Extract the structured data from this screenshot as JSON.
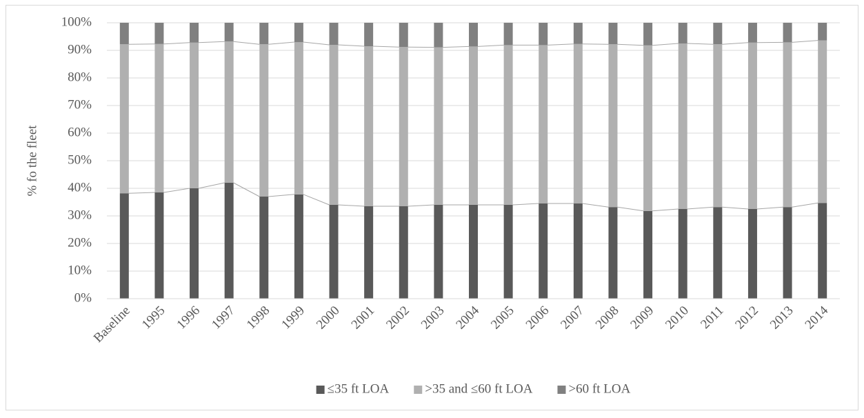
{
  "chart_data": {
    "type": "stacked-bar",
    "ylabel": "% fo the fleet",
    "categories": [
      "Baseline",
      "1995",
      "1996",
      "1997",
      "1998",
      "1999",
      "2000",
      "2001",
      "2002",
      "2003",
      "2004",
      "2005",
      "2006",
      "2007",
      "2008",
      "2009",
      "2010",
      "2011",
      "2012",
      "2013",
      "2014"
    ],
    "series": [
      {
        "name": "≤35 ft LOA",
        "color": "#595959",
        "values": [
          38.2,
          38.5,
          40,
          42,
          37,
          37.8,
          34,
          33.5,
          33.5,
          34,
          34,
          34,
          34.5,
          34.5,
          33.2,
          31.8,
          32.5,
          33.2,
          32.5,
          33.2,
          34.7
        ]
      },
      {
        "name": ">35 and ≤60 ft LOA",
        "color": "#b0b0b0",
        "values": [
          54,
          53.8,
          52.8,
          51.2,
          55.2,
          55.2,
          58,
          58,
          57.7,
          57.1,
          57.4,
          57.9,
          57.4,
          57.8,
          59,
          60,
          60,
          59,
          60.3,
          59.7,
          58.9
        ]
      },
      {
        "name": ">60 ft LOA",
        "color": "#808080",
        "values": [
          7.8,
          7.7,
          7.2,
          6.8,
          7.8,
          7,
          8,
          8.5,
          8.8,
          8.9,
          8.6,
          8.1,
          8.1,
          7.7,
          7.8,
          8.2,
          7.5,
          7.8,
          7.2,
          7.1,
          6.4
        ]
      }
    ],
    "ylim": [
      0,
      100
    ],
    "yticks": [
      {
        "value": 0,
        "label": "0%"
      },
      {
        "value": 10,
        "label": "10%"
      },
      {
        "value": 20,
        "label": "20%"
      },
      {
        "value": 30,
        "label": "30%"
      },
      {
        "value": 40,
        "label": "40%"
      },
      {
        "value": 50,
        "label": "50%"
      },
      {
        "value": 60,
        "label": "60%"
      },
      {
        "value": 70,
        "label": "70%"
      },
      {
        "value": 80,
        "label": "80%"
      },
      {
        "value": 90,
        "label": "90%"
      },
      {
        "value": 100,
        "label": "100%"
      }
    ],
    "grid": true,
    "legend": "bottom"
  }
}
